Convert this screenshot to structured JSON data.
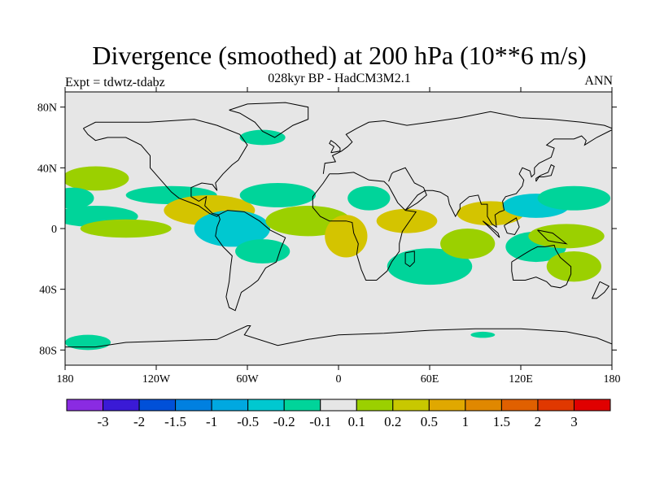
{
  "title": "Divergence (smoothed) at 200 hPa (10**6 m/s)",
  "subtitle": "028kyr BP - HadCM3M2.1",
  "left_label": "Expt = tdwtz-tdabz",
  "right_label": "ANN",
  "colors": {
    "background": "#e6e6e6",
    "coast": "#000000",
    "positive_light": "#9bd000",
    "positive_mid": "#d4c400",
    "positive_strong": "#e0a000",
    "negative_light": "#00d49a",
    "negative_mid": "#00c8d0",
    "negative_strong": "#0094e0"
  },
  "chart_data": {
    "type": "heatmap",
    "title": "Divergence (smoothed) at 200 hPa (10**6 m/s)",
    "x_ticks": [
      "180",
      "120W",
      "60W",
      "0",
      "60E",
      "120E",
      "180"
    ],
    "x_tick_values": [
      -180,
      -120,
      -60,
      0,
      60,
      120,
      180
    ],
    "y_ticks": [
      "80N",
      "40N",
      "0",
      "40S",
      "80S"
    ],
    "y_tick_values": [
      80,
      40,
      0,
      -40,
      -80
    ],
    "xlim": [
      -180,
      180
    ],
    "ylim": [
      -90,
      90
    ],
    "colorbar": {
      "labels": [
        "-3",
        "-2",
        "-1.5",
        "-1",
        "-0.5",
        "-0.2",
        "-0.1",
        "0.1",
        "0.2",
        "0.5",
        "1",
        "1.5",
        "2",
        "3"
      ],
      "colors": [
        "#8a2be2",
        "#3a1ad6",
        "#0050d8",
        "#0080e0",
        "#00a8e0",
        "#00c8d0",
        "#00d49a",
        "#e6e6e6",
        "#9bd000",
        "#c8c800",
        "#e0a800",
        "#e08800",
        "#e06000",
        "#e03800",
        "#e00000"
      ]
    },
    "regions": [
      {
        "lon": -160,
        "lat": 33,
        "w": 22,
        "h": 8,
        "value": 0.2
      },
      {
        "lon": -175,
        "lat": 20,
        "w": 14,
        "h": 7,
        "value": -0.2
      },
      {
        "lon": -160,
        "lat": 8,
        "w": 28,
        "h": 7,
        "value": -0.2
      },
      {
        "lon": -110,
        "lat": 22,
        "w": 30,
        "h": 6,
        "value": -0.2
      },
      {
        "lon": -140,
        "lat": 0,
        "w": 30,
        "h": 6,
        "value": 0.2
      },
      {
        "lon": -85,
        "lat": 12,
        "w": 30,
        "h": 10,
        "value": 0.5
      },
      {
        "lon": -70,
        "lat": 0,
        "w": 25,
        "h": 12,
        "value": -0.5
      },
      {
        "lon": -40,
        "lat": 22,
        "w": 25,
        "h": 8,
        "value": -0.2
      },
      {
        "lon": -50,
        "lat": -15,
        "w": 18,
        "h": 8,
        "value": -0.2
      },
      {
        "lon": -20,
        "lat": 5,
        "w": 28,
        "h": 10,
        "value": 0.2
      },
      {
        "lon": 5,
        "lat": -5,
        "w": 14,
        "h": 14,
        "value": 0.5
      },
      {
        "lon": 20,
        "lat": 20,
        "w": 14,
        "h": 8,
        "value": -0.2
      },
      {
        "lon": 45,
        "lat": 5,
        "w": 20,
        "h": 8,
        "value": 0.5
      },
      {
        "lon": 60,
        "lat": -25,
        "w": 28,
        "h": 12,
        "value": -0.2
      },
      {
        "lon": 85,
        "lat": -10,
        "w": 18,
        "h": 10,
        "value": 0.2
      },
      {
        "lon": 100,
        "lat": 10,
        "w": 22,
        "h": 8,
        "value": 0.5
      },
      {
        "lon": 130,
        "lat": 15,
        "w": 22,
        "h": 8,
        "value": -0.5
      },
      {
        "lon": 155,
        "lat": 20,
        "w": 24,
        "h": 8,
        "value": -0.2
      },
      {
        "lon": 130,
        "lat": -12,
        "w": 20,
        "h": 10,
        "value": -0.2
      },
      {
        "lon": 150,
        "lat": -5,
        "w": 25,
        "h": 8,
        "value": 0.2
      },
      {
        "lon": 155,
        "lat": -25,
        "w": 18,
        "h": 10,
        "value": 0.2
      },
      {
        "lon": -165,
        "lat": -75,
        "w": 15,
        "h": 5,
        "value": -0.2
      },
      {
        "lon": 95,
        "lat": -70,
        "w": 8,
        "h": 2,
        "value": -0.1
      },
      {
        "lon": -50,
        "lat": 60,
        "w": 15,
        "h": 5,
        "value": -0.2
      }
    ]
  }
}
